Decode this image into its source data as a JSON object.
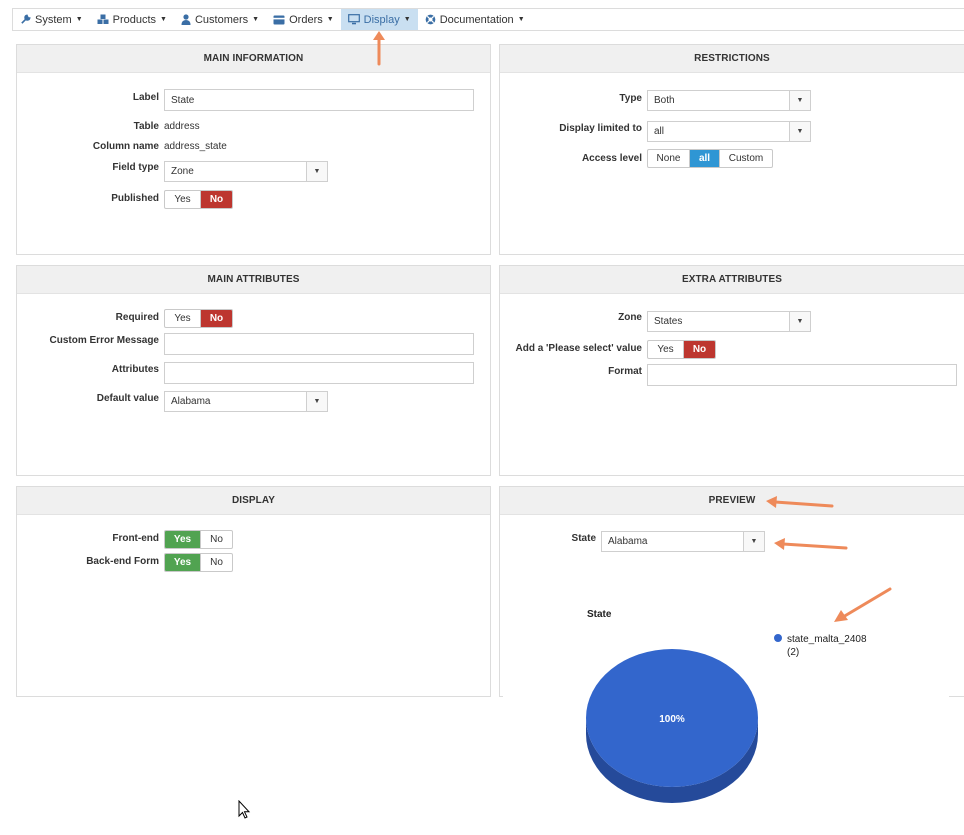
{
  "menu": [
    {
      "label": "System",
      "icon": "wrench-icon"
    },
    {
      "label": "Products",
      "icon": "cubes-icon"
    },
    {
      "label": "Customers",
      "icon": "user-icon"
    },
    {
      "label": "Orders",
      "icon": "credit-card-icon"
    },
    {
      "label": "Display",
      "icon": "monitor-icon"
    },
    {
      "label": "Documentation",
      "icon": "life-ring-icon"
    }
  ],
  "main_info": {
    "title": "MAIN INFORMATION",
    "label_lbl": "Label",
    "label_value": "State",
    "table_lbl": "Table",
    "table_value": "address",
    "column_lbl": "Column name",
    "column_value": "address_state",
    "fieldtype_lbl": "Field type",
    "fieldtype_value": "Zone",
    "published_lbl": "Published",
    "yes": "Yes",
    "no": "No"
  },
  "restrictions": {
    "title": "RESTRICTIONS",
    "type_lbl": "Type",
    "type_value": "Both",
    "display_lbl": "Display limited to",
    "display_value": "all",
    "access_lbl": "Access level",
    "access_none": "None",
    "access_all": "all",
    "access_custom": "Custom"
  },
  "main_attr": {
    "title": "MAIN ATTRIBUTES",
    "required_lbl": "Required",
    "yes": "Yes",
    "no": "No",
    "error_lbl": "Custom Error Message",
    "error_value": "",
    "attributes_lbl": "Attributes",
    "attributes_value": "",
    "default_lbl": "Default value",
    "default_value": "Alabama"
  },
  "extra_attr": {
    "title": "EXTRA ATTRIBUTES",
    "zone_lbl": "Zone",
    "zone_value": "States",
    "please_lbl": "Add a 'Please select' value",
    "yes": "Yes",
    "no": "No",
    "format_lbl": "Format",
    "format_value": ""
  },
  "display": {
    "title": "DISPLAY",
    "front_lbl": "Front-end",
    "back_lbl": "Back-end Form",
    "yes": "Yes",
    "no": "No"
  },
  "preview": {
    "title": "PREVIEW",
    "state_lbl": "State",
    "state_value": "Alabama",
    "chart_title": "State",
    "legend_name": "state_malta_2408",
    "legend_count": "(2)",
    "slice_label": "100%"
  },
  "colors": {
    "accent": "#3a6ea5",
    "red": "#bd362f",
    "green": "#51a351",
    "blue": "#2f96d4",
    "pie": "#3366cc",
    "pie_side": "#254a9a",
    "annotation_arrow": "#ee8a5a"
  }
}
